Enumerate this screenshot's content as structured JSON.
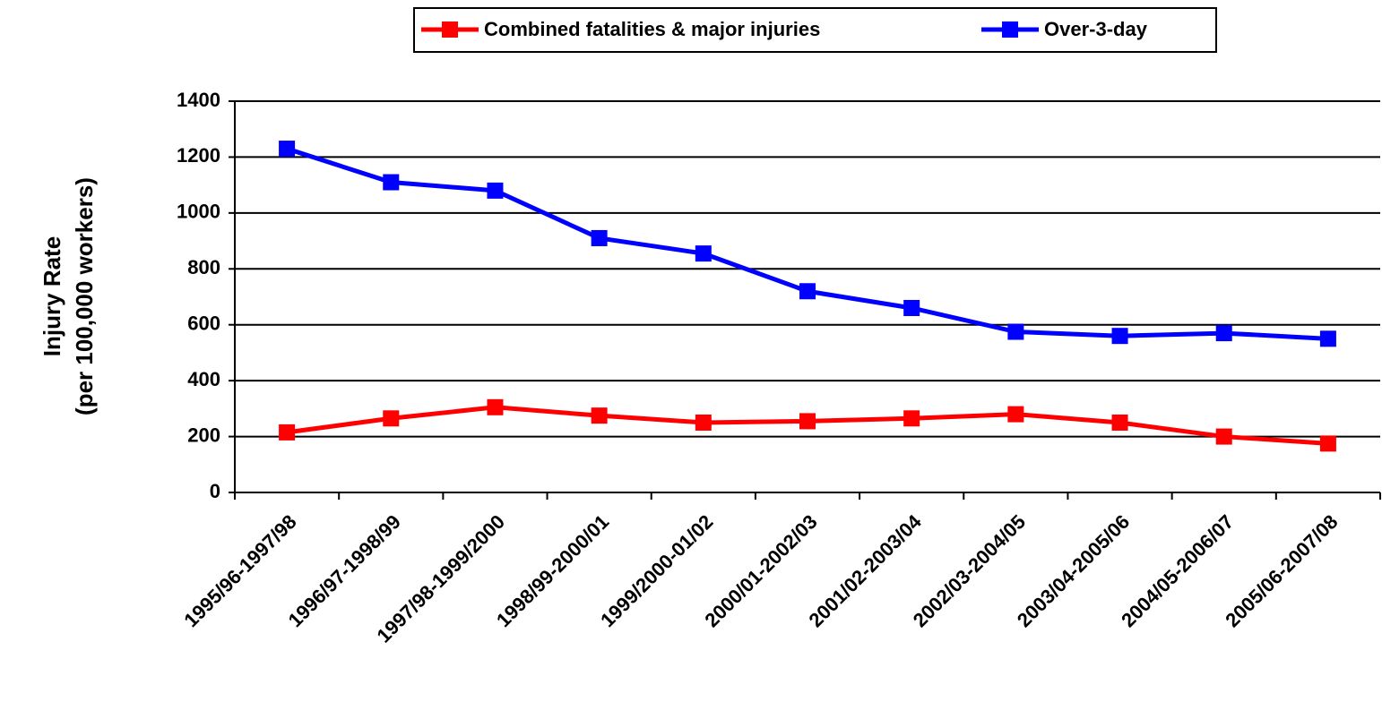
{
  "chart_data": {
    "type": "line",
    "ylabel_lines": [
      "Injury Rate",
      "(per 100,000 workers)"
    ],
    "categories": [
      "1995/96-1997/98",
      "1996/97-1998/99",
      "1997/98-1999/2000",
      "1998/99-2000/01",
      "1999/2000-01/02",
      "2000/01-2002/03",
      "2001/02-2003/04",
      "2002/03-2004/05",
      "2003/04-2005/06",
      "2004/05-2006/07",
      "2005/06-2007/08"
    ],
    "series": [
      {
        "name": "Combined fatalities & major injuries",
        "color": "#ff0000",
        "values": [
          215,
          265,
          305,
          275,
          250,
          255,
          265,
          280,
          250,
          200,
          175
        ]
      },
      {
        "name": "Over-3-day",
        "color": "#0000ff",
        "values": [
          1230,
          1110,
          1080,
          910,
          855,
          720,
          660,
          575,
          560,
          570,
          550
        ]
      }
    ],
    "ylim": [
      0,
      1400
    ],
    "yticks": [
      0,
      200,
      400,
      600,
      800,
      1000,
      1200,
      1400
    ],
    "grid": true,
    "legend": "top"
  }
}
